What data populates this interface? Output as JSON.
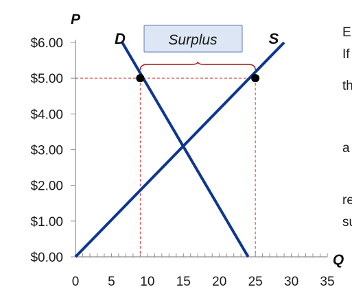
{
  "colors": {
    "curve": "#0d3592",
    "guide": "#e03030",
    "brace": "#a52020",
    "axis": "#8c8c8c",
    "surplus_fill": "#dce6f4",
    "surplus_stroke": "#5e7bb0",
    "point": "#000000"
  },
  "side_text": [
    "E",
    "If",
    "th",
    "a",
    "re",
    "su"
  ],
  "chart_data": {
    "type": "line",
    "title": "",
    "xlabel": "Q",
    "ylabel": "P",
    "xlim": [
      0,
      35
    ],
    "ylim": [
      0,
      6
    ],
    "x_ticks": [
      0,
      5,
      10,
      15,
      20,
      25,
      30,
      35
    ],
    "x_tick_labels": [
      "0",
      "5",
      "10",
      "15",
      "20",
      "25",
      "30",
      "35"
    ],
    "x_minor_step": 1,
    "y_ticks": [
      0,
      1,
      2,
      3,
      4,
      5,
      6
    ],
    "y_tick_labels": [
      "$0.00",
      "$1.00",
      "$2.00",
      "$3.00",
      "$4.00",
      "$5.00",
      "$6.00"
    ],
    "grid": false,
    "series": [
      {
        "name": "D",
        "x": [
          6.5,
          24
        ],
        "y": [
          6,
          0
        ]
      },
      {
        "name": "S",
        "x": [
          0,
          29
        ],
        "y": [
          0,
          6
        ]
      }
    ],
    "reference_price": 5,
    "highlight_points": [
      {
        "x": 9,
        "y": 5
      },
      {
        "x": 25,
        "y": 5
      }
    ],
    "annotations": [
      {
        "text": "Surplus",
        "x_from": 9,
        "x_to": 25,
        "y": 5
      }
    ]
  }
}
